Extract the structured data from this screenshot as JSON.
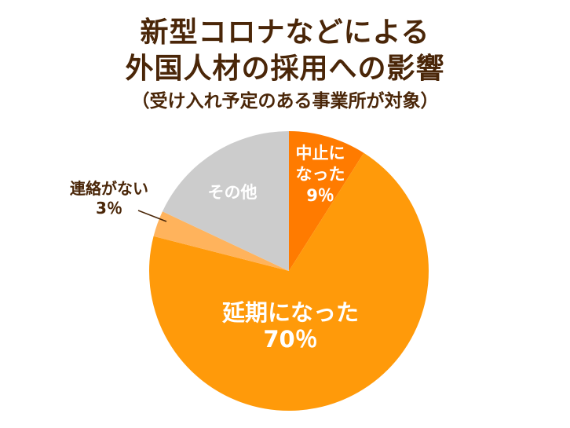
{
  "chart_data": {
    "type": "pie",
    "title_lines": [
      "新型コロナなどによる",
      "外国人材の採用への影響"
    ],
    "subtitle": "（受け入れ予定のある事業所が対象）",
    "slices": [
      {
        "label": "中止になった",
        "label_lines": [
          "中止に",
          "なった"
        ],
        "value": 9,
        "value_text": "9％",
        "color": "#ff7b00",
        "label_color": "#ffffff"
      },
      {
        "label": "延期になった",
        "label_lines": [
          "延期になった"
        ],
        "value": 70,
        "value_text": "70％",
        "color": "#ff9a0a",
        "label_color": "#ffffff"
      },
      {
        "label": "連絡がない",
        "label_lines": [
          "連絡がない"
        ],
        "value": 3,
        "value_text": "3％",
        "color": "#ffb35c",
        "label_color": "#4a2608"
      },
      {
        "label": "その他",
        "label_lines": [
          "その他"
        ],
        "value": 18,
        "value_text": "",
        "color": "#cccccc",
        "label_color": "#ffffff"
      }
    ],
    "start": "12 o'clock",
    "direction": "clockwise",
    "legend": "none"
  }
}
